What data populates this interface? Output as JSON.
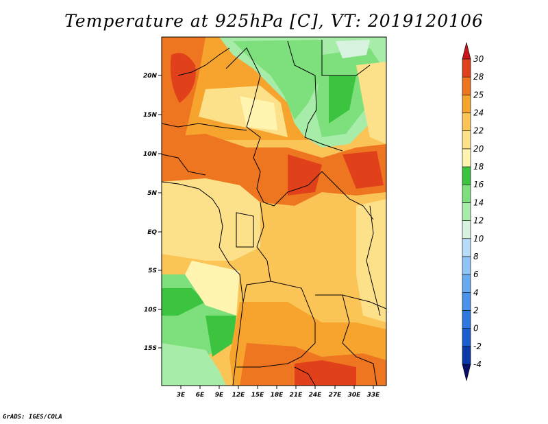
{
  "title": "Temperature at 925hPa [C], VT: 2019120106",
  "credit": "GrADS: IGES/COLA",
  "map": {
    "lat_labels": [
      "20N",
      "15N",
      "10N",
      "5N",
      "EQ",
      "5S",
      "10S",
      "15S"
    ],
    "lon_labels": [
      "3E",
      "6E",
      "9E",
      "12E",
      "15E",
      "18E",
      "21E",
      "24E",
      "27E",
      "30E",
      "33E"
    ]
  },
  "colorbar": {
    "levels": [
      "-4",
      "-2",
      "0",
      "2",
      "4",
      "6",
      "8",
      "10",
      "12",
      "14",
      "16",
      "18",
      "20",
      "22",
      "24",
      "25",
      "28",
      "30"
    ],
    "colors": [
      "#08106a",
      "#0a3aa8",
      "#1a5ed0",
      "#2e78e0",
      "#4a92ea",
      "#68aaf0",
      "#8ec4f6",
      "#b6dcfa",
      "#d8f2e0",
      "#a8ecaa",
      "#7ee07c",
      "#3cc440",
      "#fff4b0",
      "#fde18a",
      "#fbc456",
      "#f6a42e",
      "#ef7620",
      "#e0401a",
      "#c8141a"
    ]
  }
}
